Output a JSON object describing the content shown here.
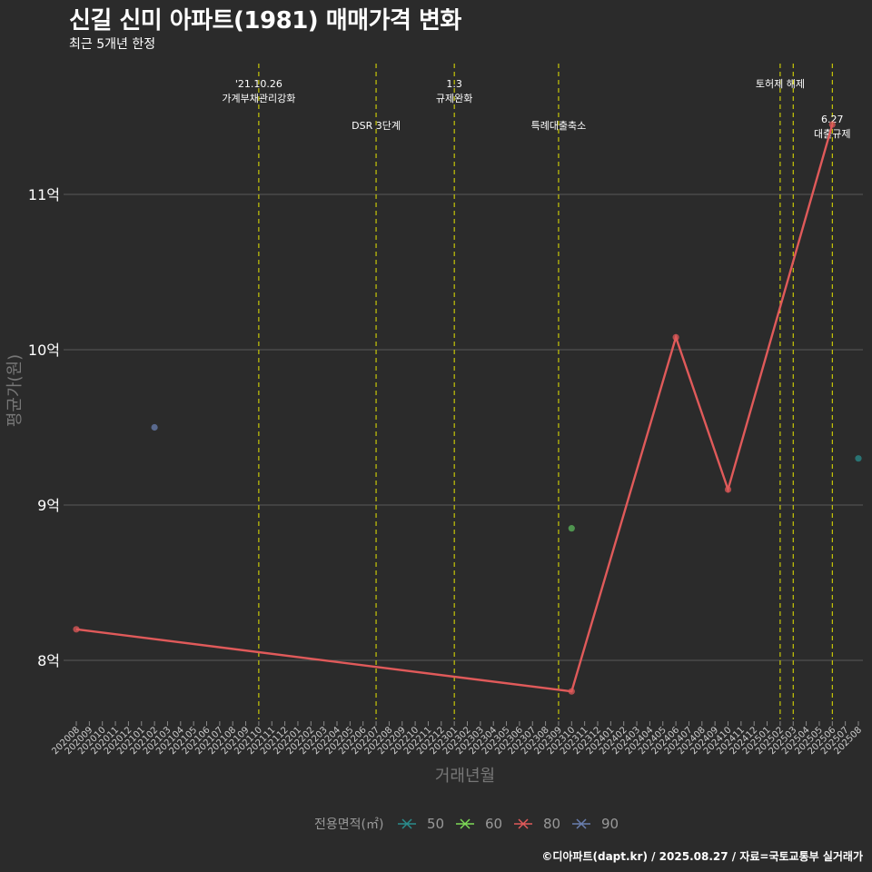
{
  "title": "신길 신미 아파트(1981) 매매가격 변화",
  "subtitle": "최근 5개년 한정",
  "caption": "©디아파트(dapt.kr) / 2025.08.27 / 자료=국토교통부 실거래가",
  "chart_data": {
    "type": "line",
    "xlabel": "거래년월",
    "ylabel": "평균가(원)",
    "y_unit_suffix": "억",
    "ylim": [
      7.6,
      12.0
    ],
    "yticks": [
      8,
      9,
      10,
      11
    ],
    "ytick_labels": [
      "8억",
      "9억",
      "10억",
      "11억"
    ],
    "months": [
      "202008",
      "202009",
      "202010",
      "202011",
      "202012",
      "202101",
      "202102",
      "202103",
      "202104",
      "202105",
      "202106",
      "202107",
      "202108",
      "202109",
      "202110",
      "202111",
      "202112",
      "202201",
      "202202",
      "202203",
      "202204",
      "202205",
      "202206",
      "202207",
      "202208",
      "202209",
      "202210",
      "202211",
      "202212",
      "202301",
      "202302",
      "202303",
      "202304",
      "202305",
      "202306",
      "202307",
      "202308",
      "202309",
      "202310",
      "202311",
      "202312",
      "202401",
      "202402",
      "202403",
      "202404",
      "202405",
      "202406",
      "202407",
      "202408",
      "202409",
      "202410",
      "202411",
      "202412",
      "202501",
      "202502",
      "202503",
      "202504",
      "202505",
      "202506",
      "202507",
      "202508"
    ],
    "legend_title": "전용면적(㎡)",
    "legend": [
      {
        "label": "50",
        "color": "#2a8c8c"
      },
      {
        "label": "60",
        "color": "#7ed957"
      },
      {
        "label": "80",
        "color": "#e05a5a"
      },
      {
        "label": "90",
        "color": "#6a7fb0"
      }
    ],
    "series": [
      {
        "name": "50",
        "color": "#2a8c8c",
        "points": [
          {
            "x": "202508",
            "y": 9.3
          }
        ]
      },
      {
        "name": "60",
        "color": "#5cb85c",
        "points": [
          {
            "x": "202310",
            "y": 8.85
          }
        ]
      },
      {
        "name": "80",
        "color": "#e05a5a",
        "line": true,
        "points": [
          {
            "x": "202008",
            "y": 8.2
          },
          {
            "x": "202310",
            "y": 7.8
          },
          {
            "x": "202406",
            "y": 10.08
          },
          {
            "x": "202410",
            "y": 9.1
          },
          {
            "x": "202506",
            "y": 11.45
          }
        ]
      },
      {
        "name": "90",
        "color": "#6a7fb0",
        "points": [
          {
            "x": "202102",
            "y": 9.5
          }
        ]
      }
    ],
    "events": [
      {
        "x": "202110",
        "lines": [
          "'21.10.26",
          "가계부채관리강화"
        ],
        "row": 0
      },
      {
        "x": "202207",
        "lines": [
          "DSR 3단계"
        ],
        "row": 1
      },
      {
        "x": "202301",
        "lines": [
          "1.3",
          "규제완화"
        ],
        "row": 0
      },
      {
        "x": "202309",
        "lines": [
          "특례대출축소"
        ],
        "row": 1
      },
      {
        "x": "202502",
        "lines": [
          "토허제 해제"
        ],
        "row": 0
      },
      {
        "x": "202503",
        "lines": [],
        "row": 0
      },
      {
        "x": "202506",
        "lines": [
          "6.27",
          "대출규제"
        ],
        "row": 2
      }
    ]
  }
}
